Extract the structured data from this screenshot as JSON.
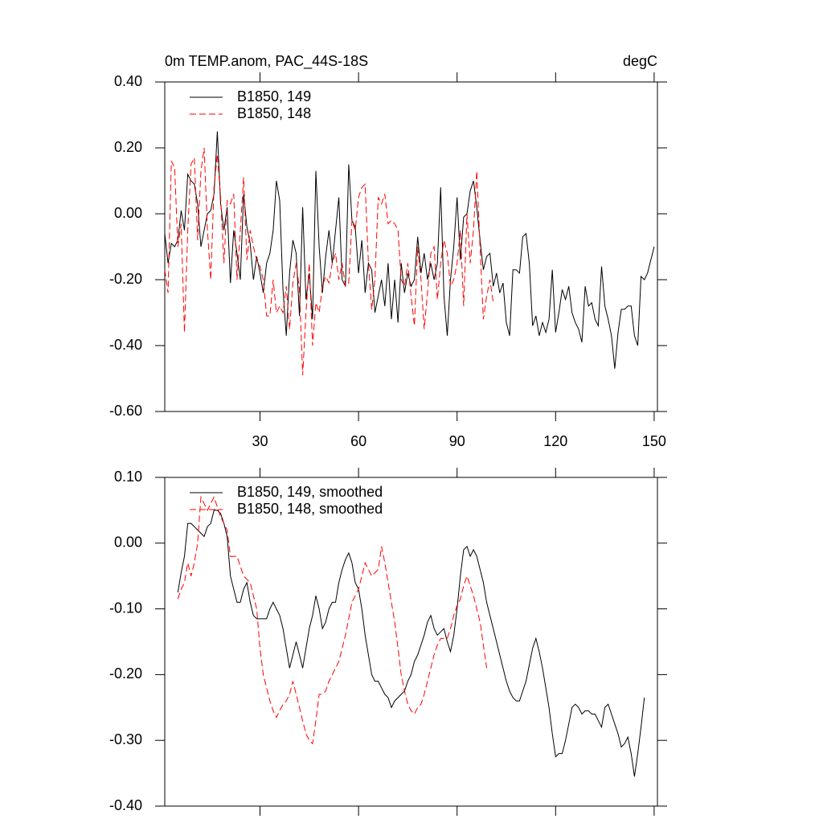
{
  "chart_data": [
    {
      "type": "line",
      "title": "0m TEMP.anom, PAC_44S-18S",
      "units": "degC",
      "x": [
        1,
        2,
        3,
        4,
        5,
        6,
        7,
        8,
        9,
        10,
        11,
        12,
        13,
        14,
        15,
        16,
        17,
        18,
        19,
        20,
        21,
        22,
        23,
        24,
        25,
        26,
        27,
        28,
        29,
        30,
        31,
        32,
        33,
        34,
        35,
        36,
        37,
        38,
        39,
        40,
        41,
        42,
        43,
        44,
        45,
        46,
        47,
        48,
        49,
        50,
        51,
        52,
        53,
        54,
        55,
        56,
        57,
        58,
        59,
        60,
        61,
        62,
        63,
        64,
        65,
        66,
        67,
        68,
        69,
        70,
        71,
        72,
        73,
        74,
        75,
        76,
        77,
        78,
        79,
        80,
        81,
        82,
        83,
        84,
        85,
        86,
        87,
        88,
        89,
        90,
        91,
        92,
        93,
        94,
        95,
        96,
        97,
        98,
        99,
        100,
        101,
        102,
        103,
        104,
        105,
        106,
        107,
        108,
        109,
        110,
        111,
        112,
        113,
        114,
        115,
        116,
        117,
        118,
        119,
        120,
        121,
        122,
        123,
        124,
        125,
        126,
        127,
        128,
        129,
        130,
        131,
        132,
        133,
        134,
        135,
        136,
        137,
        138,
        139,
        140,
        141,
        142,
        143,
        144,
        145,
        146,
        147,
        148,
        149,
        150
      ],
      "series": [
        {
          "name": "B1850, 149",
          "color": "#000000",
          "dash": false,
          "values": [
            -0.06,
            -0.15,
            -0.09,
            -0.1,
            -0.08,
            0.01,
            -0.05,
            0.12,
            0.1,
            0.09,
            0.03,
            -0.1,
            -0.05,
            0.0,
            0.01,
            0.06,
            0.25,
            0.03,
            -0.05,
            0.02,
            -0.21,
            -0.05,
            -0.12,
            -0.2,
            0.06,
            -0.04,
            -0.09,
            -0.2,
            -0.13,
            -0.18,
            -0.24,
            -0.15,
            -0.12,
            -0.05,
            0.1,
            0.04,
            -0.23,
            -0.37,
            -0.18,
            -0.08,
            -0.12,
            -0.31,
            0.02,
            -0.26,
            -0.18,
            -0.32,
            0.13,
            -0.1,
            -0.24,
            -0.13,
            -0.05,
            -0.15,
            -0.05,
            0.05,
            -0.2,
            -0.22,
            0.15,
            -0.02,
            -0.04,
            -0.18,
            -0.08,
            -0.24,
            -0.15,
            -0.17,
            -0.3,
            -0.25,
            -0.2,
            -0.28,
            -0.15,
            -0.32,
            -0.2,
            -0.33,
            -0.15,
            -0.24,
            -0.18,
            -0.22,
            -0.2,
            -0.07,
            -0.18,
            -0.12,
            -0.2,
            -0.15,
            -0.2,
            -0.15,
            0.08,
            -0.25,
            -0.37,
            -0.2,
            -0.1,
            0.05,
            -0.14,
            -0.01,
            0.0,
            0.07,
            0.1,
            0.02,
            -0.08,
            -0.17,
            -0.13,
            -0.12,
            -0.22,
            -0.18,
            -0.24,
            -0.21,
            -0.33,
            -0.37,
            -0.17,
            -0.17,
            -0.18,
            -0.07,
            -0.06,
            -0.15,
            -0.34,
            -0.31,
            -0.37,
            -0.33,
            -0.36,
            -0.32,
            -0.17,
            -0.36,
            -0.3,
            -0.23,
            -0.26,
            -0.22,
            -0.3,
            -0.33,
            -0.35,
            -0.39,
            -0.22,
            -0.28,
            -0.27,
            -0.32,
            -0.34,
            -0.16,
            -0.28,
            -0.32,
            -0.37,
            -0.47,
            -0.36,
            -0.29,
            -0.29,
            -0.28,
            -0.28,
            -0.37,
            -0.4,
            -0.19,
            -0.2,
            -0.18,
            -0.14,
            -0.1
          ]
        },
        {
          "name": "B1850, 148",
          "color": "#ff0000",
          "dash": true,
          "values": [
            -0.17,
            -0.24,
            0.16,
            0.14,
            -0.1,
            -0.03,
            -0.36,
            -0.05,
            0.15,
            0.17,
            -0.08,
            0.13,
            0.2,
            -0.05,
            -0.2,
            0.08,
            0.18,
            0.05,
            -0.15,
            0.04,
            0.03,
            0.06,
            -0.2,
            -0.05,
            0.11,
            -0.14,
            -0.05,
            -0.1,
            -0.14,
            -0.16,
            -0.2,
            -0.31,
            -0.31,
            -0.2,
            -0.3,
            -0.28,
            -0.3,
            -0.22,
            -0.35,
            -0.21,
            -0.15,
            -0.23,
            -0.49,
            -0.3,
            -0.15,
            -0.4,
            -0.27,
            -0.3,
            -0.22,
            -0.19,
            -0.21,
            -0.15,
            -0.12,
            -0.2,
            -0.15,
            -0.22,
            -0.21,
            -0.02,
            -0.05,
            0.05,
            0.08,
            0.09,
            -0.15,
            -0.29,
            -0.2,
            0.05,
            0.03,
            0.06,
            -0.03,
            -0.02,
            -0.03,
            -0.05,
            -0.2,
            -0.22,
            -0.15,
            -0.25,
            -0.34,
            -0.1,
            -0.2,
            -0.35,
            -0.24,
            -0.12,
            -0.1,
            -0.26,
            -0.15,
            -0.08,
            -0.12,
            -0.22,
            -0.2,
            -0.15,
            -0.05,
            -0.28,
            0.0,
            -0.15,
            -0.05,
            0.13,
            -0.1,
            -0.32,
            -0.25,
            -0.2,
            -0.27,
            null,
            null,
            null,
            null,
            null,
            null,
            null,
            null,
            null,
            null,
            null,
            null,
            null,
            null,
            null,
            null,
            null,
            null,
            null,
            null,
            null,
            null,
            null,
            null,
            null,
            null,
            null,
            null,
            null,
            null,
            null,
            null,
            null,
            null,
            null,
            null,
            null,
            null,
            null,
            null,
            null,
            null,
            null,
            null,
            null,
            null,
            null,
            null,
            null
          ]
        }
      ],
      "xlim": [
        1,
        151
      ],
      "xticks": [
        30,
        60,
        90,
        120,
        150
      ],
      "ylim": [
        -0.6,
        0.4
      ],
      "yticks": [
        {
          "value": -0.6,
          "label": "-0.60"
        },
        {
          "value": -0.4,
          "label": "-0.40"
        },
        {
          "value": -0.2,
          "label": "-0.20"
        },
        {
          "value": 0,
          "label": "0.00"
        },
        {
          "value": 0.2,
          "label": "0.20"
        },
        {
          "value": 0.4,
          "label": "0.40"
        }
      ]
    },
    {
      "type": "line",
      "x": [
        1,
        2,
        3,
        4,
        5,
        6,
        7,
        8,
        9,
        10,
        11,
        12,
        13,
        14,
        15,
        16,
        17,
        18,
        19,
        20,
        21,
        22,
        23,
        24,
        25,
        26,
        27,
        28,
        29,
        30,
        31,
        32,
        33,
        34,
        35,
        36,
        37,
        38,
        39,
        40,
        41,
        42,
        43,
        44,
        45,
        46,
        47,
        48,
        49,
        50,
        51,
        52,
        53,
        54,
        55,
        56,
        57,
        58,
        59,
        60,
        61,
        62,
        63,
        64,
        65,
        66,
        67,
        68,
        69,
        70,
        71,
        72,
        73,
        74,
        75,
        76,
        77,
        78,
        79,
        80,
        81,
        82,
        83,
        84,
        85,
        86,
        87,
        88,
        89,
        90,
        91,
        92,
        93,
        94,
        95,
        96,
        97,
        98,
        99,
        100,
        101,
        102,
        103,
        104,
        105,
        106,
        107,
        108,
        109,
        110,
        111,
        112,
        113,
        114,
        115,
        116,
        117,
        118,
        119,
        120,
        121,
        122,
        123,
        124,
        125,
        126,
        127,
        128,
        129,
        130,
        131,
        132,
        133,
        134,
        135,
        136,
        137,
        138,
        139,
        140,
        141,
        142,
        143,
        144,
        145,
        146,
        147,
        148,
        149,
        150
      ],
      "series": [
        {
          "name": "B1850, 149, smoothed",
          "color": "#000000",
          "dash": false,
          "values": [
            null,
            null,
            null,
            null,
            -0.075,
            -0.045,
            -0.02,
            0.03,
            0.03,
            0.025,
            0.02,
            0.015,
            0.01,
            0.025,
            0.03,
            0.05,
            0.05,
            0.045,
            0.03,
            0.01,
            -0.05,
            -0.07,
            -0.09,
            -0.09,
            -0.07,
            -0.06,
            -0.09,
            -0.11,
            -0.115,
            -0.115,
            -0.115,
            -0.115,
            -0.1,
            -0.09,
            -0.1,
            -0.11,
            -0.13,
            -0.16,
            -0.19,
            -0.17,
            -0.15,
            -0.17,
            -0.19,
            -0.16,
            -0.13,
            -0.11,
            -0.08,
            -0.1,
            -0.13,
            -0.12,
            -0.1,
            -0.09,
            -0.09,
            -0.06,
            -0.04,
            -0.025,
            -0.015,
            -0.03,
            -0.06,
            -0.07,
            -0.1,
            -0.14,
            -0.17,
            -0.2,
            -0.21,
            -0.21,
            -0.22,
            -0.23,
            -0.235,
            -0.25,
            -0.24,
            -0.235,
            -0.23,
            -0.225,
            -0.21,
            -0.2,
            -0.18,
            -0.17,
            -0.155,
            -0.14,
            -0.12,
            -0.11,
            -0.13,
            -0.14,
            -0.135,
            -0.13,
            -0.15,
            -0.165,
            -0.14,
            -0.1,
            -0.05,
            -0.01,
            -0.005,
            -0.02,
            -0.01,
            -0.02,
            -0.04,
            -0.06,
            -0.09,
            -0.11,
            -0.13,
            -0.15,
            -0.17,
            -0.19,
            -0.21,
            -0.225,
            -0.235,
            -0.24,
            -0.24,
            -0.225,
            -0.21,
            -0.185,
            -0.16,
            -0.145,
            -0.165,
            -0.19,
            -0.22,
            -0.25,
            -0.29,
            -0.325,
            -0.32,
            -0.32,
            -0.3,
            -0.275,
            -0.25,
            -0.245,
            -0.25,
            -0.26,
            -0.255,
            -0.255,
            -0.26,
            -0.26,
            -0.27,
            -0.28,
            -0.25,
            -0.245,
            -0.26,
            -0.275,
            -0.29,
            -0.31,
            -0.305,
            -0.295,
            -0.32,
            -0.355,
            -0.32,
            -0.28,
            -0.235,
            null,
            null,
            null
          ]
        },
        {
          "name": "B1850, 148, smoothed",
          "color": "#ff0000",
          "dash": true,
          "values": [
            null,
            null,
            null,
            null,
            -0.085,
            -0.07,
            -0.06,
            -0.03,
            -0.05,
            -0.03,
            0.0,
            0.07,
            0.06,
            0.05,
            0.06,
            0.07,
            0.055,
            0.04,
            0.03,
            0.02,
            -0.02,
            -0.02,
            -0.02,
            -0.035,
            -0.05,
            -0.055,
            -0.06,
            -0.08,
            -0.1,
            -0.16,
            -0.2,
            -0.22,
            -0.24,
            -0.255,
            -0.265,
            -0.255,
            -0.245,
            -0.24,
            -0.23,
            -0.21,
            -0.23,
            -0.25,
            -0.27,
            -0.29,
            -0.3,
            -0.305,
            -0.27,
            -0.23,
            -0.23,
            -0.225,
            -0.21,
            -0.2,
            -0.19,
            -0.18,
            -0.16,
            -0.14,
            -0.115,
            -0.09,
            -0.08,
            -0.07,
            -0.05,
            -0.03,
            -0.04,
            -0.05,
            -0.045,
            -0.04,
            -0.005,
            -0.03,
            -0.06,
            -0.09,
            -0.12,
            -0.16,
            -0.2,
            -0.225,
            -0.245,
            -0.255,
            -0.26,
            -0.25,
            -0.245,
            -0.23,
            -0.21,
            -0.19,
            -0.17,
            -0.155,
            -0.145,
            -0.145,
            -0.145,
            -0.13,
            -0.11,
            -0.095,
            -0.085,
            -0.065,
            -0.05,
            -0.065,
            -0.08,
            -0.1,
            -0.12,
            -0.155,
            -0.19,
            null,
            null,
            null,
            null,
            null,
            null,
            null,
            null,
            null,
            null,
            null,
            null,
            null,
            null,
            null,
            null,
            null,
            null,
            null,
            null,
            null,
            null,
            null,
            null,
            null,
            null,
            null,
            null,
            null,
            null,
            null,
            null,
            null,
            null,
            null,
            null,
            null,
            null,
            null,
            null,
            null,
            null,
            null,
            null,
            null,
            null,
            null,
            null,
            null,
            null,
            null
          ]
        }
      ],
      "xlim": [
        1,
        151
      ],
      "xticks": [
        30,
        60,
        90,
        120,
        150
      ],
      "ylim": [
        -0.4,
        0.1
      ],
      "yticks": [
        {
          "value": -0.4,
          "label": "-0.40"
        },
        {
          "value": -0.3,
          "label": "-0.30"
        },
        {
          "value": -0.2,
          "label": "-0.20"
        },
        {
          "value": -0.1,
          "label": "-0.10"
        },
        {
          "value": 0,
          "label": "0.00"
        },
        {
          "value": 0.1,
          "label": "0.10"
        }
      ]
    }
  ]
}
